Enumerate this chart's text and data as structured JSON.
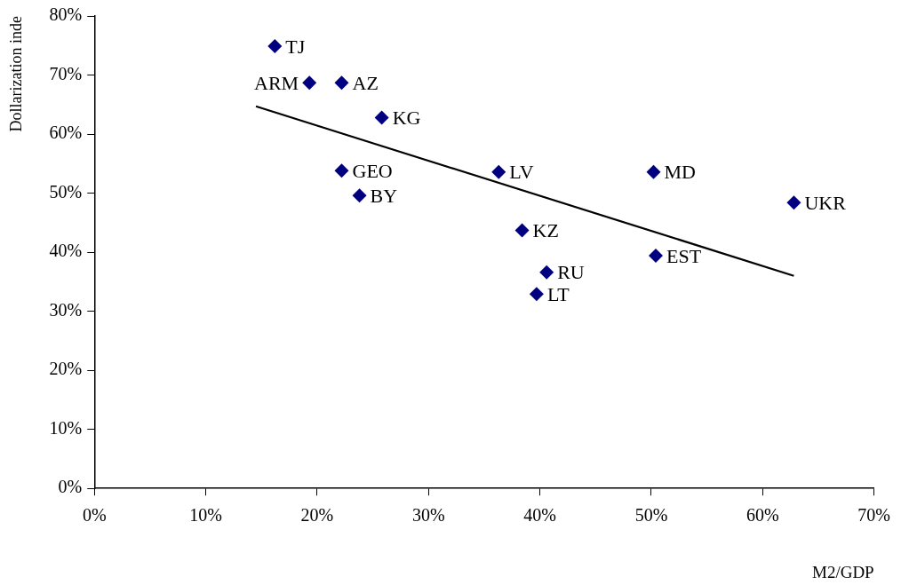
{
  "chart_data": {
    "type": "scatter",
    "xlabel": "M2/GDP",
    "ylabel": "Dollarization inde",
    "marker": "diamond",
    "grid": false,
    "legend": false,
    "xlim": [
      0,
      70
    ],
    "ylim": [
      0,
      80
    ],
    "xticks": [
      {
        "value": 0,
        "label": "0%"
      },
      {
        "value": 10,
        "label": "10%"
      },
      {
        "value": 20,
        "label": "20%"
      },
      {
        "value": 30,
        "label": "30%"
      },
      {
        "value": 40,
        "label": "40%"
      },
      {
        "value": 50,
        "label": "50%"
      },
      {
        "value": 60,
        "label": "60%"
      },
      {
        "value": 70,
        "label": "70%"
      }
    ],
    "yticks": [
      {
        "value": 0,
        "label": "0%"
      },
      {
        "value": 10,
        "label": "10%"
      },
      {
        "value": 20,
        "label": "20%"
      },
      {
        "value": 30,
        "label": "30%"
      },
      {
        "value": 40,
        "label": "40%"
      },
      {
        "value": 50,
        "label": "50%"
      },
      {
        "value": 60,
        "label": "60%"
      },
      {
        "value": 70,
        "label": "70%"
      },
      {
        "value": 80,
        "label": "80%"
      }
    ],
    "series": [
      {
        "type": "scatter",
        "color": "#000080",
        "x": [
          16.2,
          19.3,
          22.2,
          25.8,
          22.2,
          23.8,
          36.3,
          50.2,
          62.8,
          38.4,
          50.4,
          40.6,
          39.7
        ],
        "values": [
          74.9,
          68.7,
          68.7,
          62.8,
          53.8,
          49.6,
          53.6,
          53.6,
          48.4,
          43.7,
          39.4,
          36.6,
          32.9
        ]
      },
      {
        "type": "line",
        "color": "#000000",
        "marker": "none",
        "x": [
          14.5,
          62.8
        ],
        "values": [
          64.7,
          36.0
        ]
      }
    ],
    "annotations": [
      {
        "text": "TJ",
        "x": 16.2,
        "y": 74.9
      },
      {
        "text": "ARM",
        "x": 19.3,
        "y": 68.7
      },
      {
        "text": "AZ",
        "x": 22.2,
        "y": 68.7
      },
      {
        "text": "KG",
        "x": 25.8,
        "y": 62.8
      },
      {
        "text": "GEO",
        "x": 22.2,
        "y": 53.8
      },
      {
        "text": "BY",
        "x": 23.8,
        "y": 49.6
      },
      {
        "text": "LV",
        "x": 36.3,
        "y": 53.6
      },
      {
        "text": "MD",
        "x": 50.2,
        "y": 53.6
      },
      {
        "text": "UKR",
        "x": 62.8,
        "y": 48.4
      },
      {
        "text": "KZ",
        "x": 38.4,
        "y": 43.7
      },
      {
        "text": "EST",
        "x": 50.4,
        "y": 39.4
      },
      {
        "text": "RU",
        "x": 40.6,
        "y": 36.6
      },
      {
        "text": "LT",
        "x": 39.7,
        "y": 32.9
      }
    ]
  }
}
